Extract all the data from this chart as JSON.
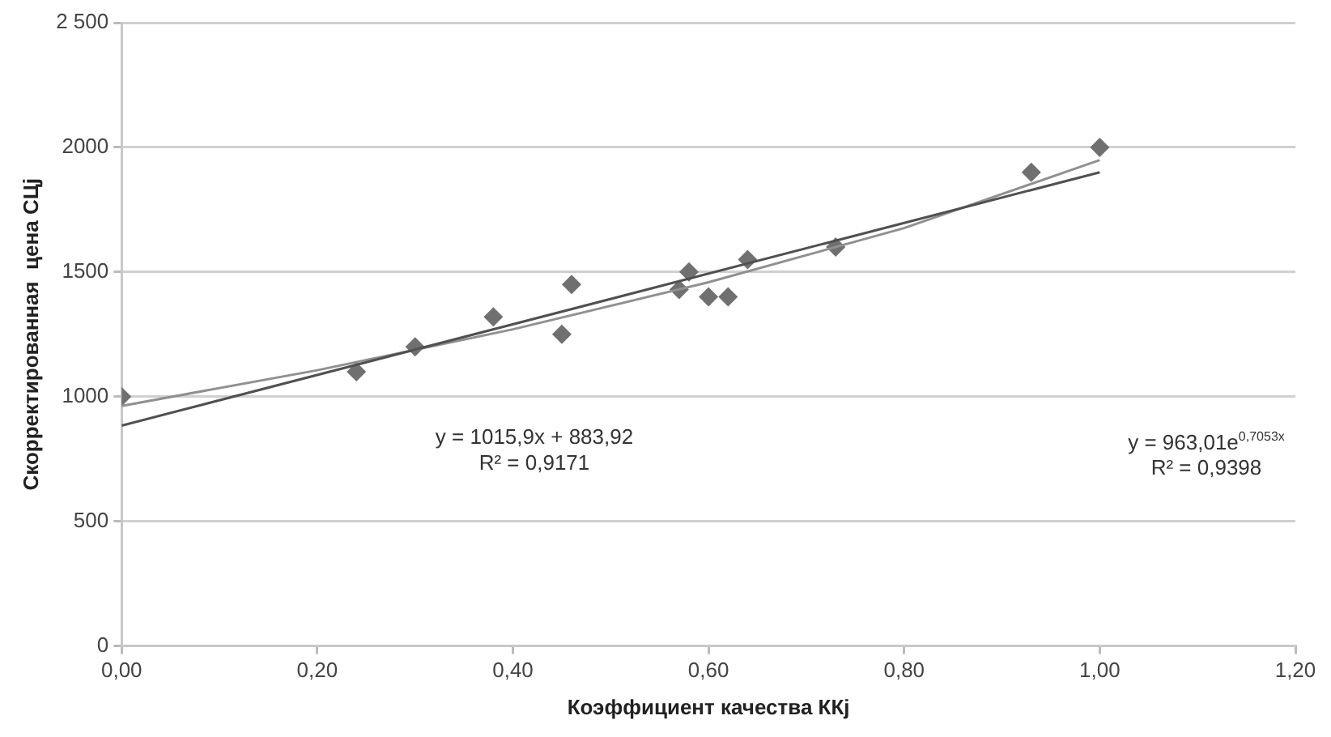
{
  "chart_data": {
    "type": "scatter",
    "xlabel": "Коэффициент качества ККj",
    "ylabel": "Скорректированная  цена СЦj",
    "xlim": [
      0,
      1.2
    ],
    "xticks": [
      {
        "value": 0,
        "label": "0,00"
      },
      {
        "value": 0.2,
        "label": "0,20"
      },
      {
        "value": 0.4,
        "label": "0,40"
      },
      {
        "value": 0.6,
        "label": "0,60"
      },
      {
        "value": 0.8,
        "label": "0,80"
      },
      {
        "value": 1,
        "label": "1,00"
      },
      {
        "value": 1.2,
        "label": "1,20"
      }
    ],
    "ylim": [
      0,
      2500
    ],
    "yticks": [
      0,
      500,
      1000,
      1500,
      2000,
      {
        "value": 2500,
        "label": "2 500"
      }
    ],
    "grid": "y",
    "legend": false,
    "marker": "diamond",
    "series": [
      {
        "type": "scatter",
        "color": "#707070",
        "x": [
          0,
          0.24,
          0.3,
          0.38,
          0.45,
          0.46,
          0.57,
          0.58,
          0.6,
          0.62,
          0.64,
          0.73,
          0.93,
          1
        ],
        "values": [
          1000,
          1100,
          1200,
          1320,
          1250,
          1450,
          1430,
          1500,
          1400,
          1400,
          1550,
          1600,
          1900,
          2000
        ]
      },
      {
        "type": "line",
        "color": "#505050",
        "marker": "none",
        "x": [
          0,
          1
        ],
        "values": [
          884,
          1900
        ]
      },
      {
        "type": "line",
        "color": "#909090",
        "marker": "none",
        "x": [
          0,
          0.2,
          0.4,
          0.6,
          0.8,
          1
        ],
        "values": [
          963,
          1106,
          1270,
          1459,
          1676,
          1949
        ]
      }
    ],
    "annotations": [
      "y = 1015,9x + 883,92\nR² = 0,9171",
      "y = 963,01e$^{0,7053x}$\nR² = 0,9398"
    ]
  }
}
